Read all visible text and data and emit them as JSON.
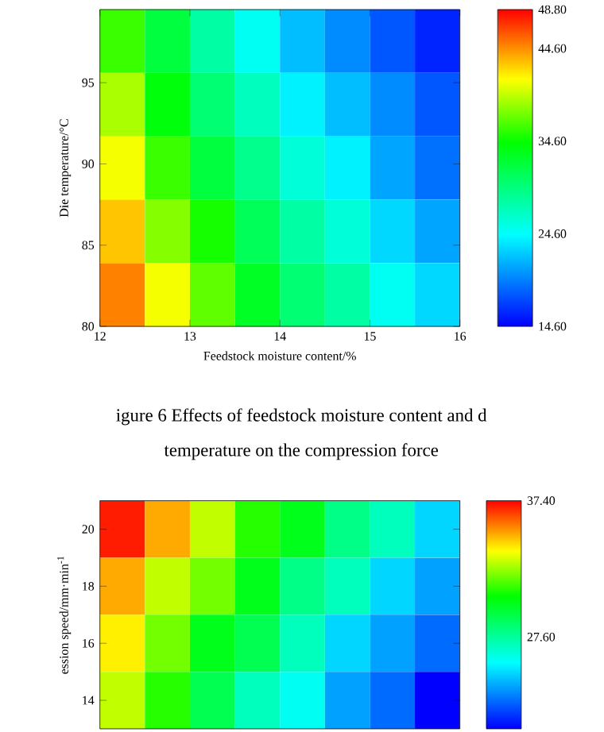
{
  "chart_data": [
    {
      "type": "heatmap",
      "xlabel": "Feedstock moisture content/%",
      "ylabel": "Die temperature/°C",
      "xlim": [
        12,
        16
      ],
      "xticks": [
        12,
        13,
        14,
        15,
        16
      ],
      "ylim": [
        80,
        99.5
      ],
      "yticks": [
        80,
        85,
        90,
        95
      ],
      "cells": [
        [
          36,
          32,
          28,
          25,
          22,
          20,
          18,
          16
        ],
        [
          39,
          34,
          30,
          27,
          24,
          22,
          20,
          18
        ],
        [
          41,
          36,
          32,
          29,
          26,
          24,
          21,
          19
        ],
        [
          43,
          38,
          35,
          31,
          28,
          26,
          23,
          21
        ],
        [
          45,
          41,
          37,
          33,
          30,
          28,
          25,
          23
        ]
      ],
      "clim": [
        14.6,
        48.8
      ],
      "cticks": [
        {
          "value": 14.6,
          "label": "14.60"
        },
        {
          "value": 24.6,
          "label": "24.60"
        },
        {
          "value": 34.6,
          "label": "34.60"
        },
        {
          "value": 44.6,
          "label": "44.60"
        },
        {
          "value": 48.8,
          "label": "48.80"
        }
      ],
      "annotations": [
        "igure 6    Effects of feedstock moisture content and d",
        "temperature on the compression force"
      ]
    },
    {
      "type": "heatmap",
      "ylabel": "ession speed/mm·min$^{-1}$",
      "categories": [
        null,
        null,
        null,
        null,
        null,
        null,
        null,
        null
      ],
      "y_categories": [
        "20",
        "18",
        "16",
        "14"
      ],
      "tick_labels": "y",
      "cells": [
        [
          37,
          35,
          33,
          31,
          30,
          28,
          27,
          25
        ],
        [
          35,
          33,
          32,
          30,
          28,
          27,
          25,
          24
        ],
        [
          34,
          32,
          30,
          29,
          27,
          25,
          24,
          23
        ],
        [
          33,
          31,
          29,
          27,
          26,
          24,
          23,
          21
        ]
      ],
      "clim": [
        21,
        37.4
      ],
      "cticks": [
        {
          "value": 27.6,
          "label": "27.60"
        },
        {
          "value": 37.4,
          "label": "37.40"
        }
      ]
    }
  ]
}
